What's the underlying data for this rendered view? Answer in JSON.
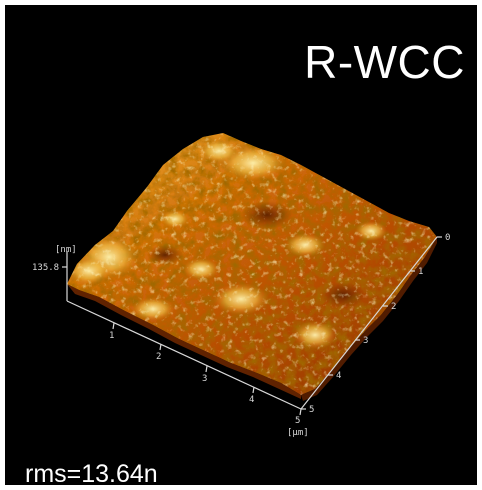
{
  "image": {
    "sample_label": "R-WCC",
    "roughness_text": "rms=13.64n",
    "colors": {
      "background": "#000000",
      "surface_dark": "#4a1c00",
      "surface_mid": "#c76a07",
      "surface_light": "#fff1a3",
      "axis": "#d8d8d8"
    }
  },
  "axes": {
    "z_unit": "[nm]",
    "z_max": "135.8",
    "xy_unit": "[μm]",
    "x_ticks": [
      "1",
      "2",
      "3",
      "4",
      "5"
    ],
    "y_ticks": [
      "0",
      "1",
      "2",
      "3",
      "4",
      "5"
    ]
  }
}
